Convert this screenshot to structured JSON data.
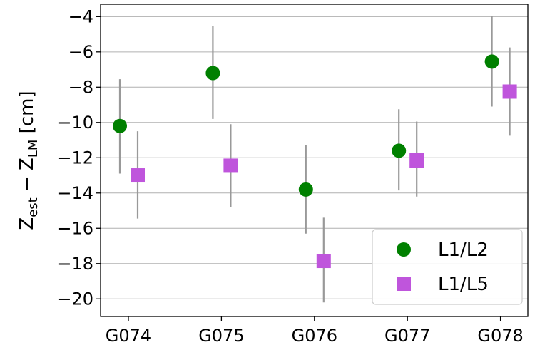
{
  "chart_data": {
    "type": "scatter",
    "categories": [
      "G074",
      "G075",
      "G076",
      "G077",
      "G078"
    ],
    "ylabel": "Z_est − Z_LM [cm]",
    "ylim": [
      -21,
      -3.3
    ],
    "yticks": [
      -4,
      -6,
      -8,
      -10,
      -12,
      -14,
      -16,
      -18,
      -20
    ],
    "ytick_labels": [
      "−4",
      "−6",
      "−8",
      "−10",
      "−12",
      "−14",
      "−16",
      "−18",
      "−20"
    ],
    "grid": "y",
    "legend_position": "lower-right",
    "series": [
      {
        "name": "L1/L2",
        "marker": "circle",
        "color": "#008000",
        "values": [
          -10.2,
          -7.2,
          -13.8,
          -11.6,
          -6.55
        ],
        "err_low": [
          -12.9,
          -9.8,
          -16.3,
          -13.85,
          -9.1
        ],
        "err_high": [
          -7.55,
          -4.55,
          -11.3,
          -9.25,
          -3.95
        ]
      },
      {
        "name": "L1/L5",
        "marker": "square",
        "color": "#bf55dc",
        "values": [
          -13.0,
          -12.45,
          -17.85,
          -12.15,
          -8.25
        ],
        "err_low": [
          -15.45,
          -14.8,
          -20.2,
          -14.2,
          -10.75
        ],
        "err_high": [
          -10.5,
          -10.1,
          -15.4,
          -9.95,
          -5.75
        ]
      }
    ],
    "errorbar_color": "#999999"
  }
}
